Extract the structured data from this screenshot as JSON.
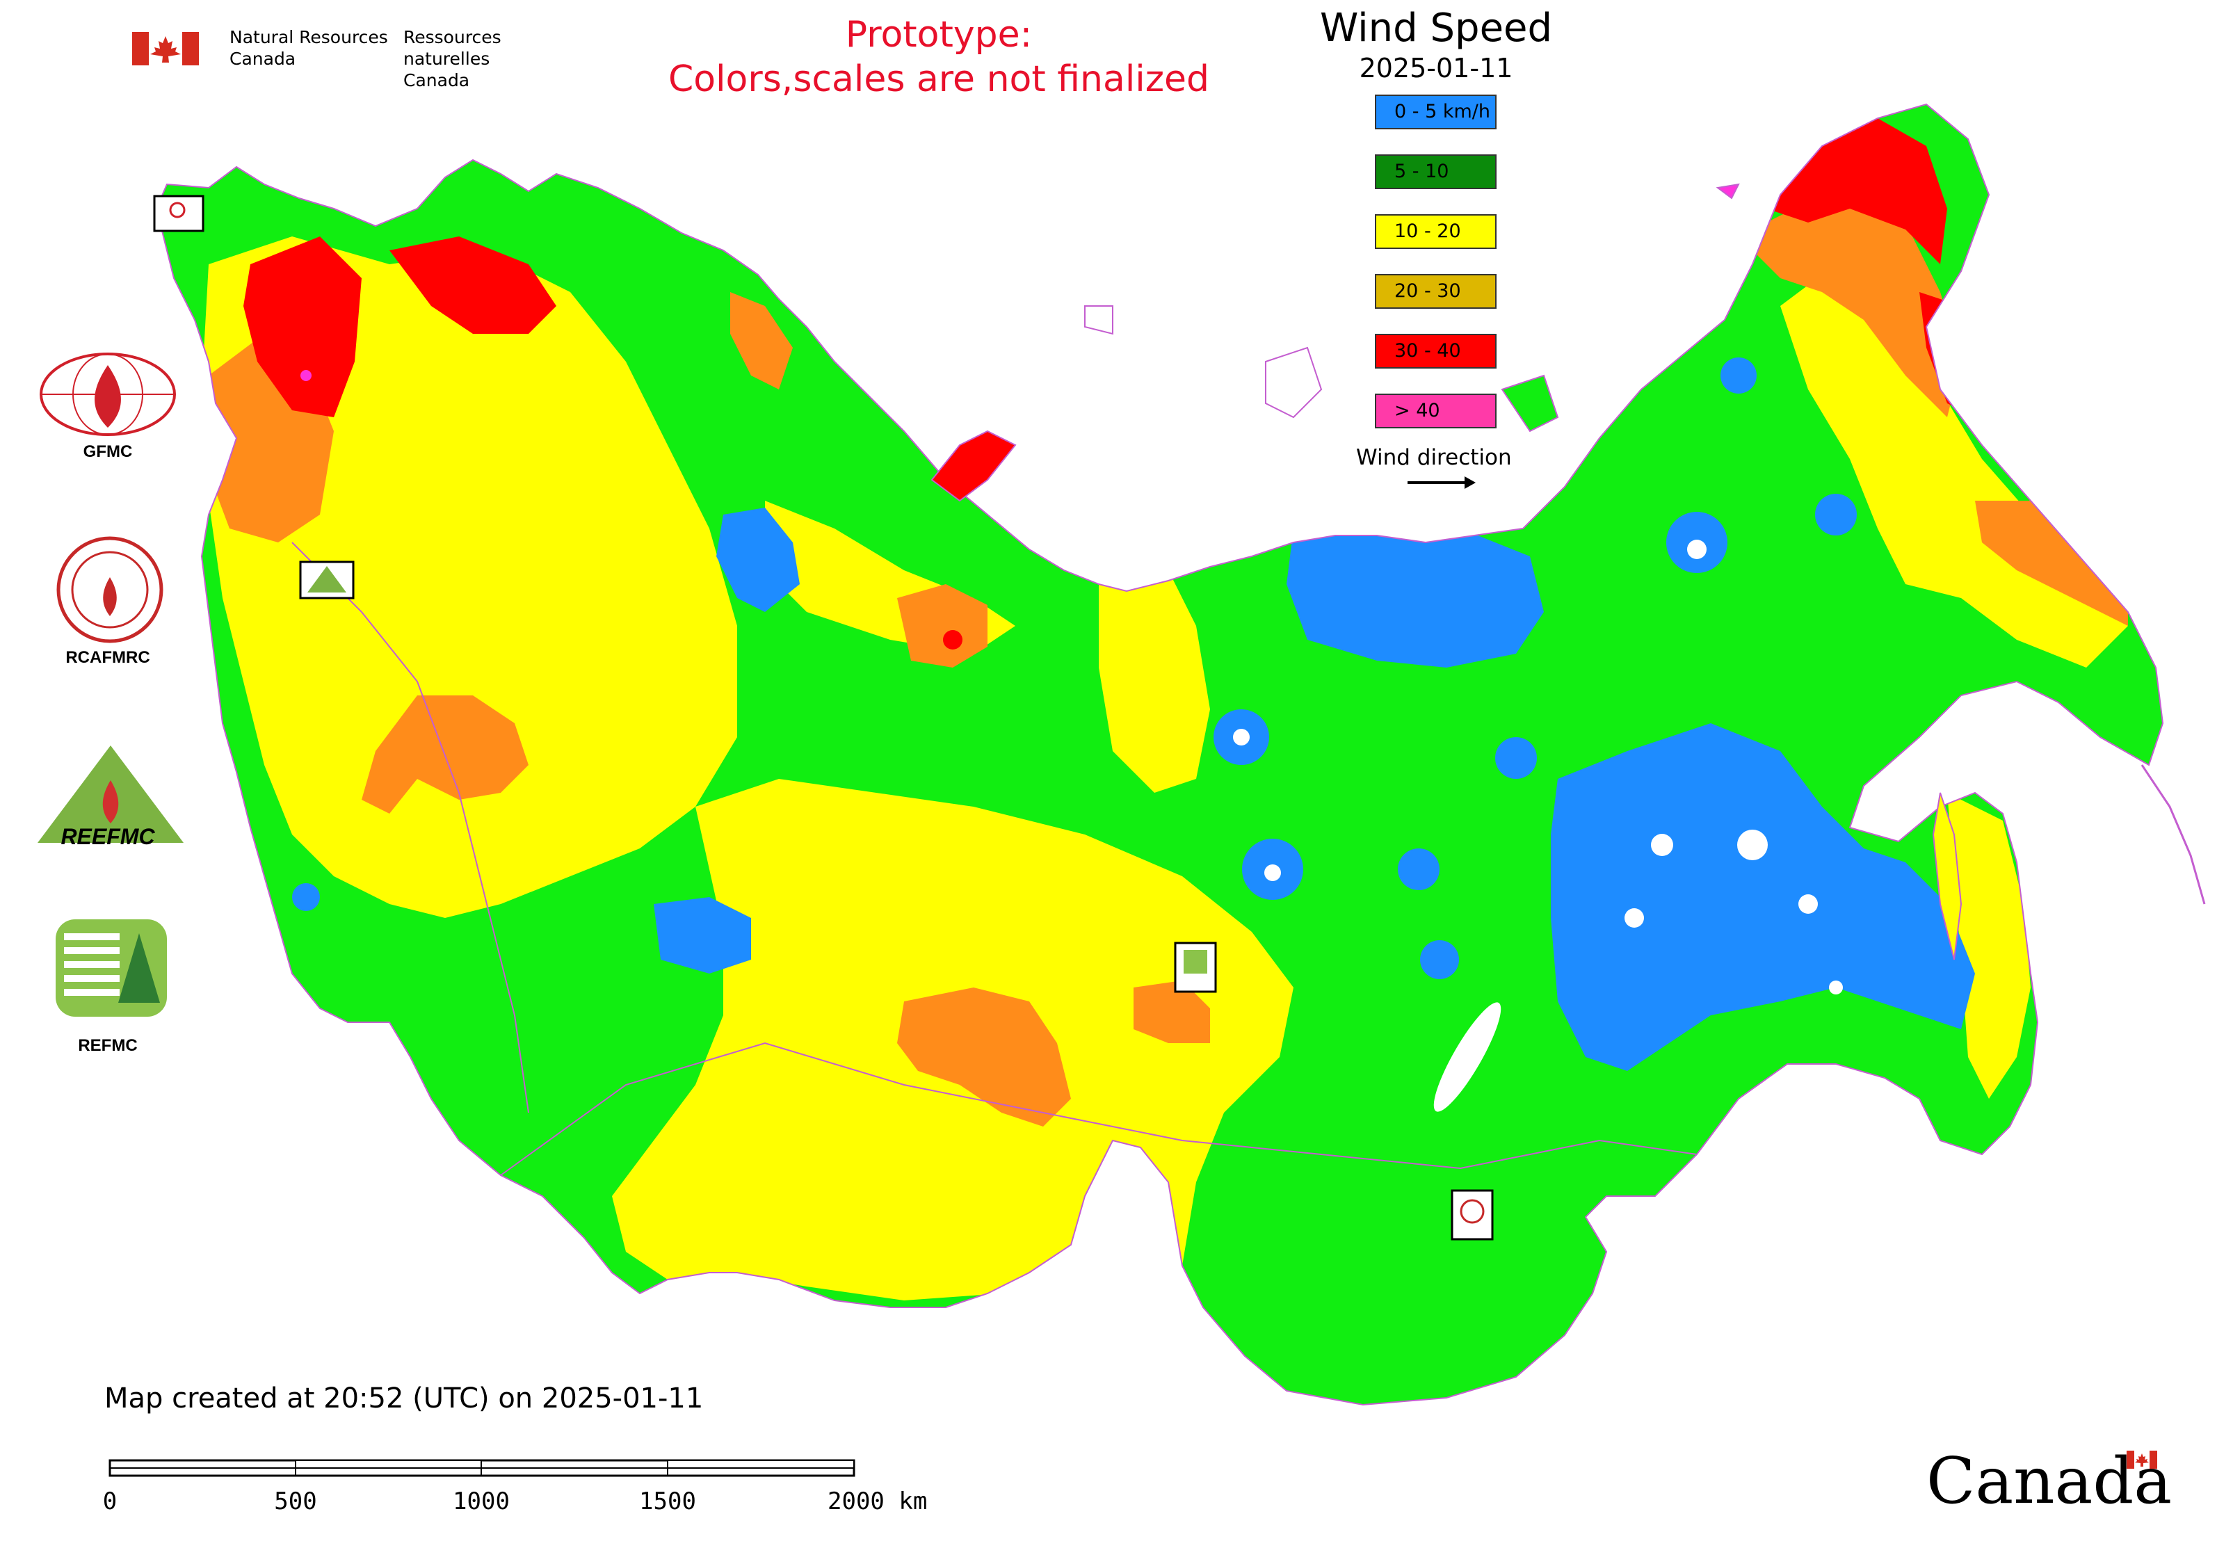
{
  "header": {
    "org_en_line1": "Natural Resources",
    "org_en_line2": "Canada",
    "org_fr_line1": "Ressources naturelles",
    "org_fr_line2": "Canada",
    "notice_line1": "Prototype:",
    "notice_line2": "Colors,scales are not finalized"
  },
  "legend": {
    "title": "Wind Speed",
    "date": "2025-01-11",
    "items": [
      {
        "label": "0 - 5 km/h",
        "color": "#1e8cff"
      },
      {
        "label": "5 - 10",
        "color": "#0b8a0b"
      },
      {
        "label": "10 - 20",
        "color": "#ffff00"
      },
      {
        "label": "20 - 30",
        "color": "#ddb700"
      },
      {
        "label": "30 - 40",
        "color": "#ff0000"
      },
      {
        "label": "> 40",
        "color": "#ff3aa8"
      }
    ],
    "wind_direction_label": "Wind direction"
  },
  "colors": {
    "lt5": "#1e8cff",
    "c5_10": "#11ee11",
    "c10_20": "#ffff00",
    "c20_30": "#ff8c1a",
    "c30_40": "#ff0000",
    "gt40": "#ff33dd",
    "water": "#ffffff",
    "border": "#c45ed0"
  },
  "logos": [
    {
      "caption": "GFMC"
    },
    {
      "caption": "RCAFMRC"
    },
    {
      "caption": "REEFMC"
    },
    {
      "caption": "REFMC"
    }
  ],
  "footer": {
    "created": "Map created at 20:52 (UTC) on 2025-01-11",
    "scale_ticks": [
      "0",
      "500",
      "1000",
      "1500",
      "2000 km"
    ],
    "canada_wordmark": "Canada"
  }
}
